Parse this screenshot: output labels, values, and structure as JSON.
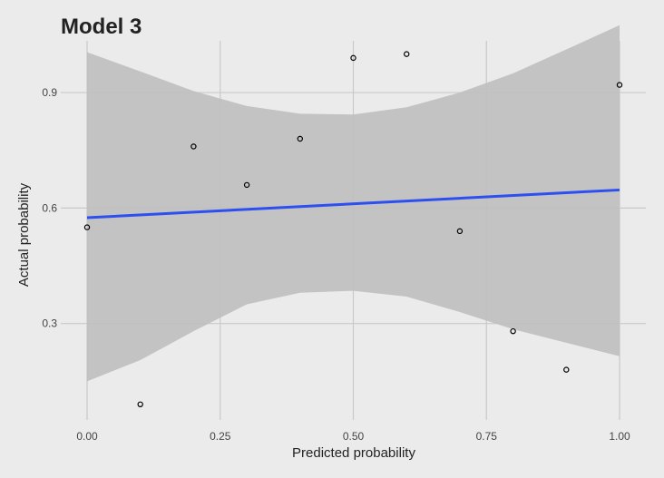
{
  "chart_data": {
    "type": "scatter",
    "title": "Model 3",
    "xlabel": "Predicted probability",
    "ylabel": "Actual probability",
    "xlim": [
      0,
      1
    ],
    "ylim": [
      0.0,
      1.1
    ],
    "x_ticks": [
      0.0,
      0.25,
      0.5,
      0.75,
      1.0
    ],
    "x_tick_labels": [
      "0.00",
      "0.25",
      "0.50",
      "0.75",
      "1.00"
    ],
    "y_ticks": [
      0.3,
      0.6,
      0.9
    ],
    "y_tick_labels": [
      "0.3",
      "0.6",
      "0.9"
    ],
    "grid": true,
    "points": [
      {
        "x": 0.0,
        "y": 0.55
      },
      {
        "x": 0.1,
        "y": 0.09
      },
      {
        "x": 0.2,
        "y": 0.76
      },
      {
        "x": 0.3,
        "y": 0.66
      },
      {
        "x": 0.4,
        "y": 0.78
      },
      {
        "x": 0.5,
        "y": 0.99
      },
      {
        "x": 0.6,
        "y": 1.0
      },
      {
        "x": 0.7,
        "y": 0.54
      },
      {
        "x": 0.8,
        "y": 0.28
      },
      {
        "x": 0.9,
        "y": 0.18
      },
      {
        "x": 1.0,
        "y": 0.92
      }
    ],
    "fit_line": {
      "x": [
        0.0,
        1.0
      ],
      "y": [
        0.575,
        0.647
      ]
    },
    "confidence_band": {
      "x": [
        0.0,
        0.1,
        0.2,
        0.3,
        0.4,
        0.5,
        0.6,
        0.7,
        0.8,
        0.9,
        1.0
      ],
      "upper": [
        1.005,
        0.955,
        0.904,
        0.865,
        0.845,
        0.843,
        0.862,
        0.9,
        0.95,
        1.012,
        1.075
      ],
      "lower": [
        0.15,
        0.205,
        0.28,
        0.35,
        0.38,
        0.385,
        0.37,
        0.33,
        0.285,
        0.25,
        0.215
      ]
    },
    "colors": {
      "background": "#ebebeb",
      "grid": "#c9c9c9",
      "band": "#bfbfbf",
      "line": "#2e4ff0",
      "point_stroke": "#000000"
    }
  }
}
